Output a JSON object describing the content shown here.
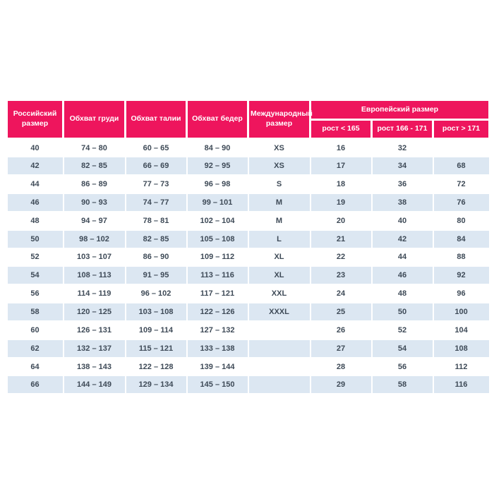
{
  "table": {
    "header": {
      "russian_size": "Российский размер",
      "chest": "Обхват груди",
      "waist": "Обхват талии",
      "hips": "Обхват бедер",
      "international_size": "Международный размер",
      "european_size": "Европейский размер",
      "height_cols": [
        "рост < 165",
        "рост 166 - 171",
        "рост > 171"
      ]
    },
    "colors": {
      "header_bg": "#ee155d",
      "header_text": "#ffffff",
      "stripe_bg": "#dce7f2",
      "body_text": "#3e4a57"
    },
    "rows": [
      [
        "40",
        "74 – 80",
        "60 – 65",
        "84 – 90",
        "XS",
        "16",
        "32",
        ""
      ],
      [
        "42",
        "82 – 85",
        "66 – 69",
        "92 – 95",
        "XS",
        "17",
        "34",
        "68"
      ],
      [
        "44",
        "86 – 89",
        "77 – 73",
        "96 – 98",
        "S",
        "18",
        "36",
        "72"
      ],
      [
        "46",
        "90 – 93",
        "74 – 77",
        "99 – 101",
        "M",
        "19",
        "38",
        "76"
      ],
      [
        "48",
        "94 – 97",
        "78 – 81",
        "102 – 104",
        "M",
        "20",
        "40",
        "80"
      ],
      [
        "50",
        "98 – 102",
        "82 – 85",
        "105 – 108",
        "L",
        "21",
        "42",
        "84"
      ],
      [
        "52",
        "103 – 107",
        "86 – 90",
        "109 – 112",
        "XL",
        "22",
        "44",
        "88"
      ],
      [
        "54",
        "108 – 113",
        "91 – 95",
        "113 – 116",
        "XL",
        "23",
        "46",
        "92"
      ],
      [
        "56",
        "114 – 119",
        "96 – 102",
        "117 – 121",
        "XXL",
        "24",
        "48",
        "96"
      ],
      [
        "58",
        "120 – 125",
        "103 – 108",
        "122 – 126",
        "XXXL",
        "25",
        "50",
        "100"
      ],
      [
        "60",
        "126 – 131",
        "109 – 114",
        "127 – 132",
        "",
        "26",
        "52",
        "104"
      ],
      [
        "62",
        "132 – 137",
        "115 – 121",
        "133 – 138",
        "",
        "27",
        "54",
        "108"
      ],
      [
        "64",
        "138 – 143",
        "122 – 128",
        "139 – 144",
        "",
        "28",
        "56",
        "112"
      ],
      [
        "66",
        "144 – 149",
        "129 – 134",
        "145 – 150",
        "",
        "29",
        "58",
        "116"
      ]
    ]
  }
}
